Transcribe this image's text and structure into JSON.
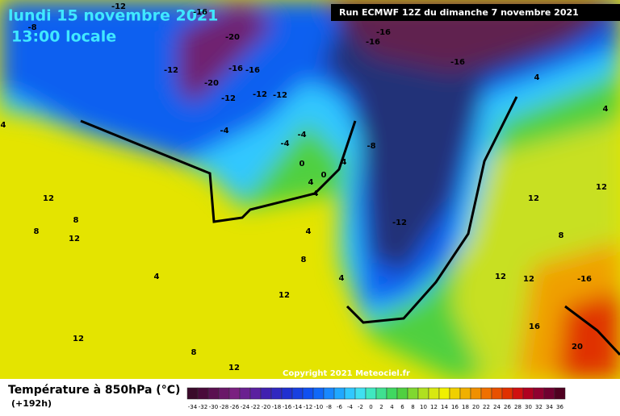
{
  "header": {
    "title": "lundi 15 novembre 2021",
    "subtitle": "13:00 locale",
    "run": "Run ECMWF 12Z du dimanche 7 novembre 2021"
  },
  "map": {
    "contour_labels": [
      "-12",
      "-16",
      "-20",
      "-8",
      "-12",
      "-16",
      "-16",
      "-20",
      "-12",
      "-12",
      "-12",
      "-16",
      "-16",
      "-16",
      "-4",
      "-4",
      "-4",
      "-8",
      "0",
      "4",
      "0",
      "4",
      "4",
      "-12",
      "12",
      "8",
      "8",
      "12",
      "4",
      "4",
      "8",
      "4",
      "12",
      "12",
      "8",
      "12",
      "12",
      "-16",
      "8",
      "12",
      "12",
      "4",
      "4",
      "16",
      "20",
      "12",
      "4"
    ]
  },
  "footer": {
    "copyright": "Copyright 2021 Meteociel.fr",
    "legend_title": "Température à 850hPa (°C)",
    "lead_time": "(+192h)",
    "scale": {
      "values": [
        -34,
        -32,
        -30,
        -28,
        -26,
        -24,
        -22,
        -20,
        -18,
        -16,
        -14,
        -12,
        -10,
        -8,
        -6,
        -4,
        -2,
        0,
        2,
        4,
        6,
        8,
        10,
        12,
        14,
        16,
        18,
        20,
        22,
        24,
        26,
        28,
        30,
        32,
        34,
        36
      ],
      "colors": [
        "#3a0a2a",
        "#4a0a3a",
        "#5a1050",
        "#6a1868",
        "#7a2080",
        "#6a2090",
        "#5a20a0",
        "#4020b0",
        "#3028c0",
        "#2030d0",
        "#1840e0",
        "#1050f0",
        "#1068f8",
        "#1888ff",
        "#20a8ff",
        "#30c8ff",
        "#40e0f0",
        "#40e8c0",
        "#40e090",
        "#40d860",
        "#50d040",
        "#80d830",
        "#b0e020",
        "#d8e810",
        "#f0f000",
        "#f0d000",
        "#f0b000",
        "#f09000",
        "#f07000",
        "#e85000",
        "#e03000",
        "#d01010",
        "#b00020",
        "#900030",
        "#700030",
        "#500020"
      ]
    }
  }
}
